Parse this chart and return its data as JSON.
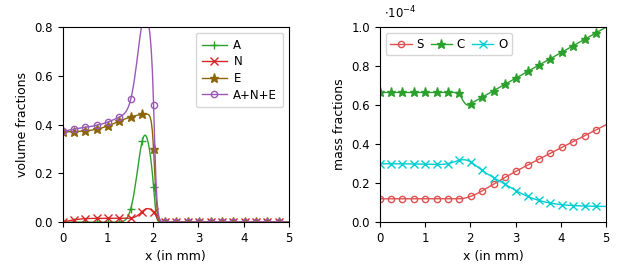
{
  "left": {
    "ylabel": "volume fractions",
    "xlabel": "x (in mm)",
    "xlim": [
      0,
      5
    ],
    "ylim": [
      0,
      0.8
    ],
    "yticks": [
      0,
      0.2,
      0.4,
      0.6,
      0.8
    ],
    "A_color": "#2ca02c",
    "N_color": "#d62728",
    "E_color": "#8B6508",
    "ANE_color": "#9B59B6",
    "legend_labels": [
      "A",
      "N",
      "E",
      "A+N+E"
    ]
  },
  "right": {
    "ylabel": "mass fractions",
    "xlabel": "x (in mm)",
    "xlim": [
      0,
      5
    ],
    "ylim": [
      0,
      1.0
    ],
    "yticks": [
      0,
      0.2,
      0.4,
      0.6,
      0.8,
      1.0
    ],
    "S_color": "#e05050",
    "C_color": "#2ca02c",
    "O_color": "#00ced1",
    "legend_labels": [
      "S",
      "C",
      "O"
    ]
  }
}
